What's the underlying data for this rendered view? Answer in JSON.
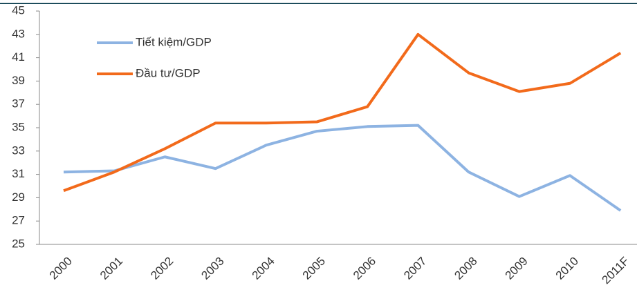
{
  "chart_data": {
    "type": "line",
    "categories": [
      "2000",
      "2001",
      "2002",
      "2003",
      "2004",
      "2005",
      "2006",
      "2007",
      "2008",
      "2009",
      "2010",
      "2011F"
    ],
    "series": [
      {
        "name": "Tiết kiệm/GDP",
        "color": "#8db3e2",
        "values": [
          31.2,
          31.3,
          32.5,
          31.5,
          33.5,
          34.7,
          35.1,
          35.2,
          31.2,
          29.1,
          30.9,
          27.9
        ]
      },
      {
        "name": "Đầu tư/GDP",
        "color": "#f26a1b",
        "values": [
          29.6,
          31.2,
          33.2,
          35.4,
          35.4,
          35.5,
          36.8,
          43.0,
          39.7,
          38.1,
          38.8,
          41.4
        ]
      }
    ],
    "ylim": [
      25,
      45
    ],
    "yticks": [
      25,
      27,
      29,
      31,
      33,
      35,
      37,
      39,
      41,
      43,
      45
    ]
  }
}
